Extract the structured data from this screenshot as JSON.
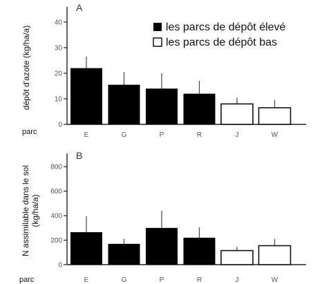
{
  "chart_data": [
    {
      "type": "bar",
      "panel_label": "A",
      "ylabel": "dépôt d'azote (kg/ha/a)",
      "xlabel": "parc",
      "categories": [
        "E",
        "G",
        "P",
        "R",
        "J",
        "W"
      ],
      "values": [
        22,
        15.5,
        14,
        12,
        8,
        6.5
      ],
      "errors": [
        4.5,
        5,
        6,
        5,
        2.5,
        3
      ],
      "group": [
        "high",
        "high",
        "high",
        "high",
        "low",
        "low"
      ],
      "ylim": [
        0,
        43
      ],
      "yticks": [
        0,
        10,
        20,
        30,
        40
      ],
      "legend": {
        "placement": "top-right",
        "entries": [
          {
            "label": "les parcs de dépôt élevé",
            "color": "#000000",
            "fill": "solid"
          },
          {
            "label": "les parcs de dépôt bas",
            "color": "#000000",
            "fill": "hollow"
          }
        ]
      }
    },
    {
      "type": "bar",
      "panel_label": "B",
      "ylabel": "N assimilable dans le sol (kg/ha/a)",
      "xlabel": "parc",
      "categories": [
        "E",
        "G",
        "P",
        "R",
        "J",
        "W"
      ],
      "values": [
        265,
        170,
        300,
        220,
        115,
        155
      ],
      "errors": [
        130,
        40,
        140,
        85,
        30,
        55
      ],
      "group": [
        "high",
        "high",
        "high",
        "high",
        "low",
        "low"
      ],
      "ylim": [
        0,
        920
      ],
      "yticks": [
        0,
        200,
        400,
        600,
        800
      ]
    }
  ]
}
